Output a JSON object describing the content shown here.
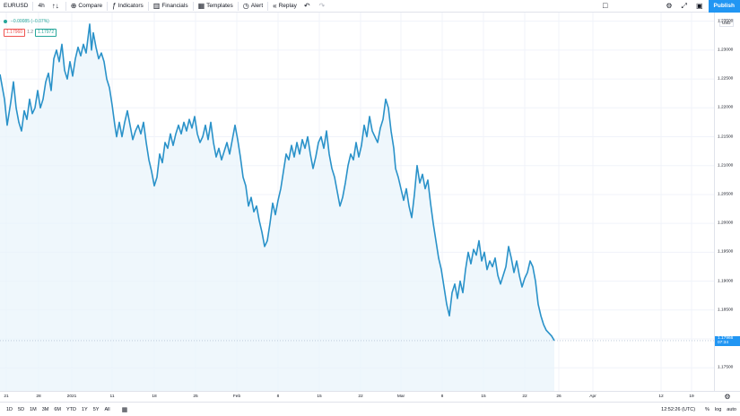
{
  "toolbar": {
    "symbol": "EURUSD",
    "interval": "4h",
    "compare_label": "Compare",
    "indicators_label": "Indicators",
    "financials_label": "Financials",
    "templates_label": "Templates",
    "alert_label": "Alert",
    "replay_label": "Replay",
    "publish_label": "Publish",
    "icons": [
      "bars-icon",
      "plus-circle-icon",
      "indicators-icon",
      "financials-icon",
      "templates-icon",
      "alarm-clock-icon",
      "replay-icon",
      "undo-icon",
      "redo-icon",
      "layout-square-icon",
      "gear-icon",
      "fullscreen-icon",
      "camera-icon"
    ]
  },
  "legend": {
    "change": "−0.00085 (−0.07%)",
    "bid": "1.17960",
    "spread": "1.2",
    "ask": "1.17972"
  },
  "price_scale": {
    "currency": "USD",
    "last_price": "1.17966",
    "countdown": "07:34"
  },
  "bottom_bar": {
    "ranges": [
      "1D",
      "5D",
      "1M",
      "3M",
      "6M",
      "YTD",
      "1Y",
      "5Y",
      "All"
    ],
    "clock": "12:52:26 (UTC)",
    "percent_label": "%",
    "log_label": "log",
    "auto_label": "auto"
  },
  "colors": {
    "line": "#2a92c9",
    "area": "#e8f3fb",
    "accent": "#2196f3",
    "up": "#26a69a",
    "down": "#ef5350"
  },
  "chart_data": {
    "type": "area",
    "ylim": [
      1.171,
      1.2365
    ],
    "y_ticks": [
      "1.23500",
      "1.23000",
      "1.22500",
      "1.22000",
      "1.21500",
      "1.21000",
      "1.20500",
      "1.20000",
      "1.19500",
      "1.19000",
      "1.18500",
      "1.18000",
      "1.17500"
    ],
    "y_tick_values": [
      1.235,
      1.23,
      1.225,
      1.22,
      1.215,
      1.21,
      1.205,
      1.2,
      1.195,
      1.19,
      1.185,
      1.18,
      1.175
    ],
    "x_ticks": [
      "21",
      "28",
      "2021",
      "11",
      "18",
      "25",
      "Feb",
      "8",
      "15",
      "22",
      "Mar",
      "8",
      "15",
      "22",
      "26",
      "Apr",
      "12",
      "19"
    ],
    "x_tick_pos": [
      7,
      43,
      80,
      125,
      172,
      218,
      264,
      310,
      356,
      402,
      447,
      493,
      539,
      585,
      623,
      661,
      737,
      771
    ],
    "x_range": [
      0,
      797
    ],
    "series": [
      {
        "values": [
          [
            0,
            1.2258
          ],
          [
            5,
            1.2215
          ],
          [
            8,
            1.217
          ],
          [
            12,
            1.221
          ],
          [
            15,
            1.2245
          ],
          [
            18,
            1.22
          ],
          [
            21,
            1.2175
          ],
          [
            24,
            1.216
          ],
          [
            27,
            1.2195
          ],
          [
            30,
            1.218
          ],
          [
            33,
            1.2215
          ],
          [
            36,
            1.219
          ],
          [
            39,
            1.22
          ],
          [
            42,
            1.223
          ],
          [
            45,
            1.22
          ],
          [
            48,
            1.2215
          ],
          [
            51,
            1.2245
          ],
          [
            54,
            1.226
          ],
          [
            57,
            1.223
          ],
          [
            60,
            1.2285
          ],
          [
            63,
            1.23
          ],
          [
            66,
            1.228
          ],
          [
            69,
            1.231
          ],
          [
            72,
            1.2265
          ],
          [
            75,
            1.225
          ],
          [
            78,
            1.228
          ],
          [
            81,
            1.2255
          ],
          [
            84,
            1.2285
          ],
          [
            87,
            1.2305
          ],
          [
            90,
            1.229
          ],
          [
            93,
            1.231
          ],
          [
            96,
            1.2295
          ],
          [
            98,
            1.232
          ],
          [
            100,
            1.2345
          ],
          [
            102,
            1.23
          ],
          [
            104,
            1.233
          ],
          [
            107,
            1.2305
          ],
          [
            110,
            1.2285
          ],
          [
            113,
            1.2295
          ],
          [
            116,
            1.228
          ],
          [
            119,
            1.225
          ],
          [
            122,
            1.2235
          ],
          [
            125,
            1.2205
          ],
          [
            128,
            1.217
          ],
          [
            130,
            1.215
          ],
          [
            133,
            1.2175
          ],
          [
            136,
            1.215
          ],
          [
            139,
            1.2175
          ],
          [
            142,
            1.2195
          ],
          [
            145,
            1.217
          ],
          [
            148,
            1.2145
          ],
          [
            151,
            1.216
          ],
          [
            154,
            1.217
          ],
          [
            157,
            1.2155
          ],
          [
            160,
            1.2175
          ],
          [
            163,
            1.214
          ],
          [
            166,
            1.211
          ],
          [
            169,
            1.209
          ],
          [
            172,
            1.2065
          ],
          [
            175,
            1.208
          ],
          [
            178,
            1.212
          ],
          [
            181,
            1.2105
          ],
          [
            184,
            1.214
          ],
          [
            187,
            1.213
          ],
          [
            190,
            1.2155
          ],
          [
            193,
            1.2135
          ],
          [
            196,
            1.2155
          ],
          [
            199,
            1.217
          ],
          [
            202,
            1.2155
          ],
          [
            205,
            1.2175
          ],
          [
            208,
            1.216
          ],
          [
            211,
            1.218
          ],
          [
            214,
            1.2165
          ],
          [
            217,
            1.2185
          ],
          [
            220,
            1.2155
          ],
          [
            223,
            1.214
          ],
          [
            226,
            1.215
          ],
          [
            229,
            1.217
          ],
          [
            232,
            1.2145
          ],
          [
            235,
            1.2175
          ],
          [
            238,
            1.214
          ],
          [
            241,
            1.2115
          ],
          [
            244,
            1.213
          ],
          [
            247,
            1.211
          ],
          [
            250,
            1.2125
          ],
          [
            253,
            1.214
          ],
          [
            256,
            1.212
          ],
          [
            259,
            1.2145
          ],
          [
            262,
            1.217
          ],
          [
            265,
            1.2145
          ],
          [
            268,
            1.2115
          ],
          [
            271,
            1.208
          ],
          [
            274,
            1.2065
          ],
          [
            277,
            1.203
          ],
          [
            280,
            1.2045
          ],
          [
            283,
            1.202
          ],
          [
            286,
            1.203
          ],
          [
            289,
            1.2005
          ],
          [
            292,
            1.1985
          ],
          [
            295,
            1.196
          ],
          [
            298,
            1.197
          ],
          [
            301,
            1.2
          ],
          [
            304,
            1.2035
          ],
          [
            307,
            1.2015
          ],
          [
            310,
            1.204
          ],
          [
            313,
            1.206
          ],
          [
            316,
            1.209
          ],
          [
            319,
            1.212
          ],
          [
            322,
            1.211
          ],
          [
            325,
            1.2135
          ],
          [
            328,
            1.2115
          ],
          [
            331,
            1.214
          ],
          [
            334,
            1.212
          ],
          [
            337,
            1.2145
          ],
          [
            340,
            1.213
          ],
          [
            343,
            1.215
          ],
          [
            346,
            1.212
          ],
          [
            349,
            1.2095
          ],
          [
            352,
            1.2115
          ],
          [
            355,
            1.214
          ],
          [
            358,
            1.215
          ],
          [
            361,
            1.213
          ],
          [
            364,
            1.216
          ],
          [
            367,
            1.212
          ],
          [
            370,
            1.2095
          ],
          [
            373,
            1.208
          ],
          [
            376,
            1.2055
          ],
          [
            379,
            1.203
          ],
          [
            382,
            1.2045
          ],
          [
            385,
            1.207
          ],
          [
            388,
            1.21
          ],
          [
            391,
            1.212
          ],
          [
            394,
            1.211
          ],
          [
            397,
            1.214
          ],
          [
            400,
            1.2115
          ],
          [
            403,
            1.2135
          ],
          [
            406,
            1.217
          ],
          [
            409,
            1.215
          ],
          [
            412,
            1.2185
          ],
          [
            415,
            1.216
          ],
          [
            418,
            1.215
          ],
          [
            421,
            1.214
          ],
          [
            424,
            1.2165
          ],
          [
            427,
            1.218
          ],
          [
            430,
            1.2215
          ],
          [
            433,
            1.22
          ],
          [
            436,
            1.216
          ],
          [
            439,
            1.213
          ],
          [
            441,
            1.2095
          ],
          [
            444,
            1.208
          ],
          [
            447,
            1.206
          ],
          [
            450,
            1.204
          ],
          [
            453,
            1.206
          ],
          [
            456,
            1.203
          ],
          [
            459,
            1.201
          ],
          [
            462,
            1.205
          ],
          [
            465,
            1.21
          ],
          [
            468,
            1.207
          ],
          [
            471,
            1.2085
          ],
          [
            474,
            1.206
          ],
          [
            477,
            1.2075
          ],
          [
            480,
            1.2035
          ],
          [
            483,
            1.2
          ],
          [
            486,
            1.197
          ],
          [
            489,
            1.194
          ],
          [
            492,
            1.192
          ],
          [
            495,
            1.189
          ],
          [
            498,
            1.186
          ],
          [
            501,
            1.184
          ],
          [
            504,
            1.188
          ],
          [
            507,
            1.1895
          ],
          [
            510,
            1.187
          ],
          [
            513,
            1.19
          ],
          [
            516,
            1.188
          ],
          [
            519,
            1.192
          ],
          [
            522,
            1.195
          ],
          [
            525,
            1.193
          ],
          [
            528,
            1.1955
          ],
          [
            531,
            1.1945
          ],
          [
            534,
            1.197
          ],
          [
            537,
            1.1935
          ],
          [
            540,
            1.195
          ],
          [
            543,
            1.192
          ],
          [
            546,
            1.1935
          ],
          [
            549,
            1.1925
          ],
          [
            552,
            1.194
          ],
          [
            555,
            1.191
          ],
          [
            558,
            1.1895
          ],
          [
            561,
            1.191
          ],
          [
            564,
            1.1925
          ],
          [
            567,
            1.196
          ],
          [
            570,
            1.194
          ],
          [
            573,
            1.1915
          ],
          [
            576,
            1.1935
          ],
          [
            579,
            1.191
          ],
          [
            582,
            1.189
          ],
          [
            585,
            1.1905
          ],
          [
            588,
            1.1915
          ],
          [
            591,
            1.1935
          ],
          [
            594,
            1.1925
          ],
          [
            597,
            1.19
          ],
          [
            600,
            1.186
          ],
          [
            603,
            1.184
          ],
          [
            606,
            1.1825
          ],
          [
            609,
            1.1815
          ],
          [
            612,
            1.181
          ],
          [
            615,
            1.1805
          ],
          [
            618,
            1.1797
          ]
        ]
      }
    ]
  }
}
